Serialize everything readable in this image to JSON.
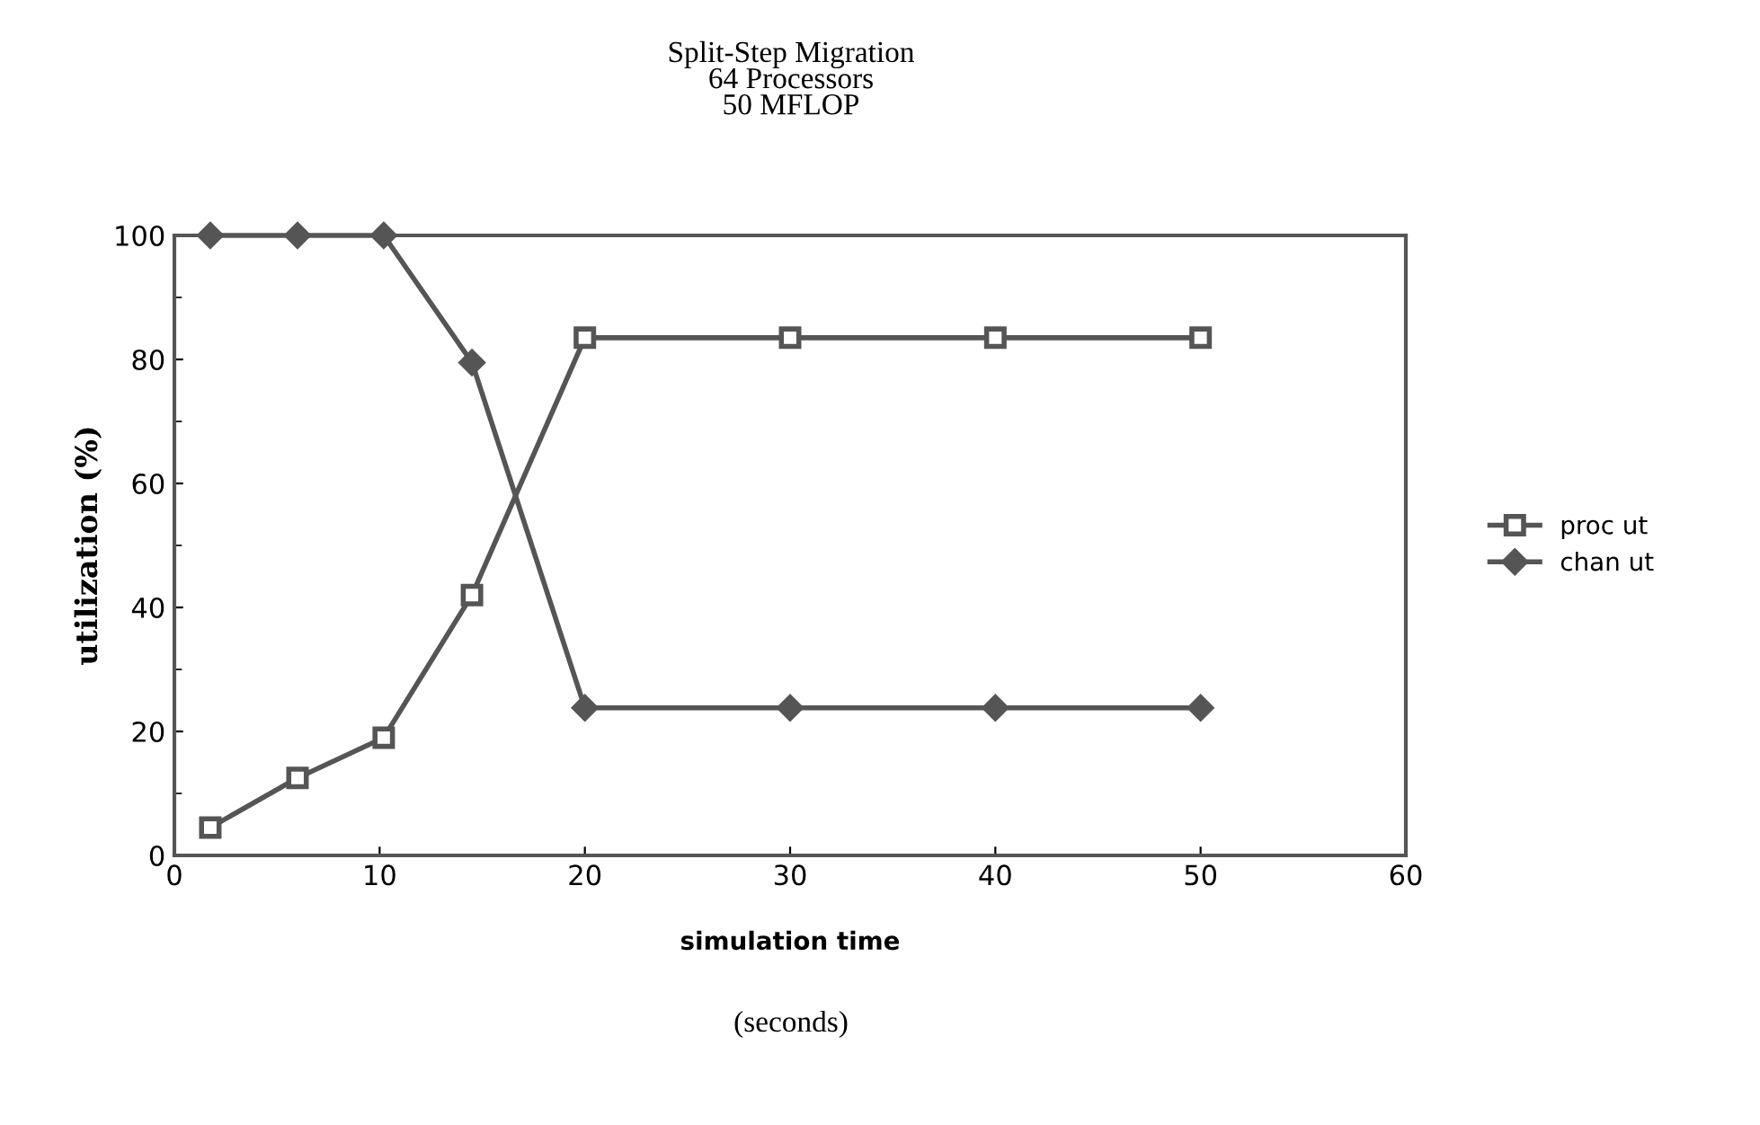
{
  "chart_data": {
    "type": "line",
    "title": "Split-Step Migration\n64 Processors\n50 MFLOP",
    "xlabel": "simulation time",
    "ylabel": "utilization (%)",
    "annotations": [
      "(seconds)"
    ],
    "x": [
      1.75,
      6,
      10.2,
      14.5,
      20,
      30,
      40,
      50
    ],
    "series": [
      {
        "name": "proc ut",
        "color": "#555555",
        "marker": "square",
        "values": [
          4.5,
          12.5,
          19,
          42,
          83.5,
          83.5,
          83.5,
          83.5
        ]
      },
      {
        "name": "chan ut",
        "color": "#555555",
        "marker": "diamond",
        "values": [
          100,
          100,
          100,
          79.5,
          23.8,
          23.8,
          23.8,
          23.8
        ]
      }
    ],
    "xlim": [
      0,
      60
    ],
    "xticks": [
      0,
      10,
      20,
      30,
      40,
      50,
      60
    ],
    "ylim": [
      0,
      100
    ],
    "yticks": [
      0,
      20,
      40,
      60,
      80,
      100
    ],
    "grid": false,
    "legend": "right",
    "line_style": "solid"
  }
}
